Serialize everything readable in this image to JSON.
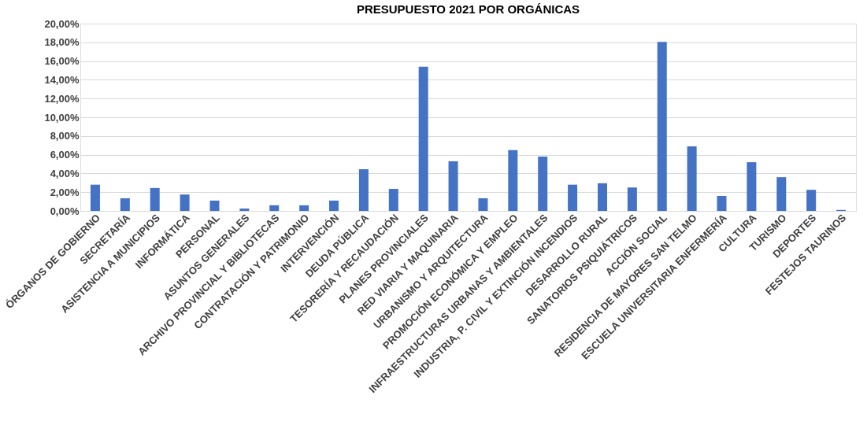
{
  "chart_data": {
    "type": "bar",
    "title": "PRESUPUESTO 2021 POR ORGÁNICAS",
    "categories": [
      "ÓRGANOS DE GOBIERNO",
      "SECRETARÍA",
      "ASISTENCIA A MUNICIPIOS",
      "INFORMÁTICA",
      "PERSONAL",
      "ASUNTOS GENERALES",
      "ARCHIVO PROVINCIAL Y BIBLIOTECAS",
      "CONTRATACIÓN Y PATRIMONIO",
      "INTERVENCIÓN",
      "DEUDA PÚBLICA",
      "TESORERÍA Y RECAUDACIÓN",
      "PLANES PROVINCIALES",
      "RED VIARIA Y MAQUINARIA",
      "URBANISMO Y ARQUITECTURA",
      "PROMOCIÓN ECONÓMICA Y EMPLEO",
      "INFRAESTRUCTURAS URBANAS Y AMBIENTALES",
      "INDUSTRIA, P. CIVIL Y EXTINCIÓN INCENDIOS",
      "DESARROLLO RURAL",
      "SANATORIOS PSIQUIÁTRICOS",
      "ACCIÓN SOCIAL",
      "RESIDENCIA DE MAYORES SAN TELMO",
      "ESCUELA UNIVERSITARIA ENFERMERÍA",
      "CULTURA",
      "TURISMO",
      "DEPORTES",
      "FESTEJOS TAURINOS"
    ],
    "values": [
      2.8,
      1.35,
      2.45,
      1.75,
      1.1,
      0.25,
      0.6,
      0.6,
      1.1,
      4.45,
      2.35,
      15.4,
      5.3,
      1.35,
      6.5,
      5.8,
      2.8,
      2.95,
      2.5,
      18.05,
      6.9,
      1.6,
      5.2,
      3.6,
      2.25,
      0.1
    ],
    "color": "#4472c4",
    "ylim": [
      0,
      20
    ],
    "yticks": [
      {
        "value": 0,
        "label": "0,00%"
      },
      {
        "value": 2,
        "label": "2,00%"
      },
      {
        "value": 4,
        "label": "4,00%"
      },
      {
        "value": 6,
        "label": "6,00%"
      },
      {
        "value": 8,
        "label": "8,00%"
      },
      {
        "value": 10,
        "label": "10,00%"
      },
      {
        "value": 12,
        "label": "12,00%"
      },
      {
        "value": 14,
        "label": "14,00%"
      },
      {
        "value": 16,
        "label": "16,00%"
      },
      {
        "value": 18,
        "label": "18,00%"
      },
      {
        "value": 20,
        "label": "20,00%"
      }
    ],
    "grid": "y"
  }
}
